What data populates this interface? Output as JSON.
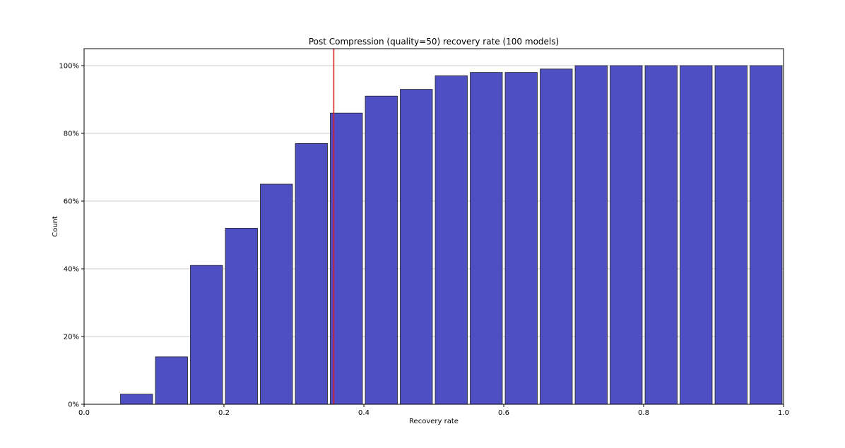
{
  "chart_data": {
    "type": "bar",
    "title": "Post Compression (quality=50) recovery rate (100 models)",
    "xlabel": "Recovery rate",
    "ylabel": "Count",
    "xlim": [
      0.0,
      1.0
    ],
    "ylim": [
      0,
      105
    ],
    "x_ticks": [
      {
        "value": 0.0,
        "label": "0.0"
      },
      {
        "value": 0.2,
        "label": "0.2"
      },
      {
        "value": 0.4,
        "label": "0.4"
      },
      {
        "value": 0.6,
        "label": "0.6"
      },
      {
        "value": 0.8,
        "label": "0.8"
      },
      {
        "value": 1.0,
        "label": "1.0"
      }
    ],
    "y_ticks": [
      {
        "value": 0,
        "label": "0%"
      },
      {
        "value": 20,
        "label": "20%"
      },
      {
        "value": 40,
        "label": "40%"
      },
      {
        "value": 60,
        "label": "60%"
      },
      {
        "value": 80,
        "label": "80%"
      },
      {
        "value": 100,
        "label": "100%"
      }
    ],
    "grid": "horizontal",
    "bin_width": 0.05,
    "bars": [
      {
        "x": 0.05,
        "value": 3
      },
      {
        "x": 0.1,
        "value": 14
      },
      {
        "x": 0.15,
        "value": 41
      },
      {
        "x": 0.2,
        "value": 52
      },
      {
        "x": 0.25,
        "value": 65
      },
      {
        "x": 0.3,
        "value": 77
      },
      {
        "x": 0.35,
        "value": 86
      },
      {
        "x": 0.4,
        "value": 91
      },
      {
        "x": 0.45,
        "value": 93
      },
      {
        "x": 0.5,
        "value": 97
      },
      {
        "x": 0.55,
        "value": 98
      },
      {
        "x": 0.6,
        "value": 98
      },
      {
        "x": 0.65,
        "value": 99
      },
      {
        "x": 0.7,
        "value": 100
      },
      {
        "x": 0.75,
        "value": 100
      },
      {
        "x": 0.8,
        "value": 100
      },
      {
        "x": 0.85,
        "value": 100
      },
      {
        "x": 0.9,
        "value": 100
      },
      {
        "x": 0.95,
        "value": 100
      }
    ],
    "vertical_line": {
      "x": 0.357,
      "color": "#e31a1c"
    },
    "bar_color": "#4f4fc4",
    "bar_edge_color": "#222222"
  }
}
